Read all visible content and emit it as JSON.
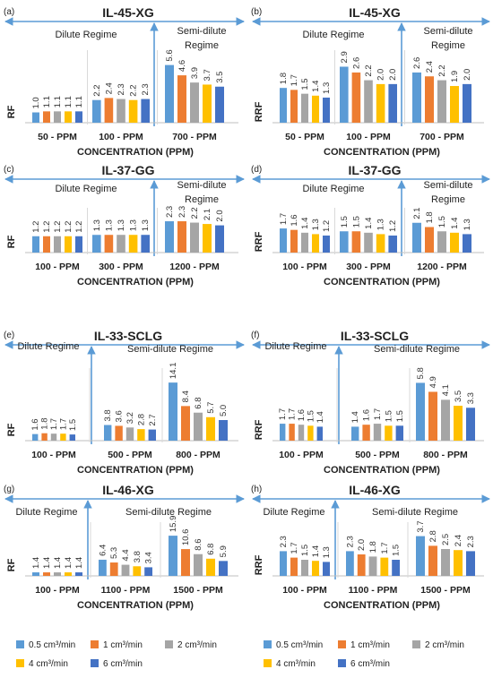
{
  "colors": [
    "#5b9bd5",
    "#ed7d31",
    "#a5a5a5",
    "#ffc000",
    "#4472c4"
  ],
  "arrow_color": "#5b9bd5",
  "legend": [
    "0.5 cm³/min",
    "1 cm³/min",
    "2 cm³/min",
    "4 cm³/min",
    "6 cm³/min"
  ],
  "chart_data": [
    {
      "type": "bar",
      "panel": "(a)",
      "title": "IL-45-XG",
      "ylabel": "RF",
      "xlabel": "CONCENTRATION (PPM)",
      "regime_left": "Dilute Regime",
      "regime_right": "Semi-dilute\nRegime",
      "categories": [
        "50 - PPM",
        "100 - PPM",
        "700 - PPM"
      ],
      "values": [
        [
          1.0,
          1.1,
          1.1,
          1.1,
          1.1
        ],
        [
          2.2,
          2.4,
          2.3,
          2.2,
          2.3
        ],
        [
          5.6,
          4.6,
          3.9,
          3.7,
          3.5
        ]
      ],
      "labels": [
        [
          "1.0",
          "1.1",
          "1.1",
          "1.1",
          "1.1"
        ],
        [
          "2.2",
          "2.4",
          "2.3",
          "2.2",
          "2.3"
        ],
        [
          "5.6",
          "4.6",
          "3.9",
          "3.7",
          "3.5"
        ]
      ],
      "ylim": [
        0,
        6
      ]
    },
    {
      "type": "bar",
      "panel": "(b)",
      "title": "IL-45-XG",
      "ylabel": "RRF",
      "xlabel": "CONCENTRATION (PPM)",
      "regime_left": "Dilute Regime",
      "regime_right": "Semi-dilute\nRegime",
      "categories": [
        "50 - PPM",
        "100 - PPM",
        "700 - PPM"
      ],
      "values": [
        [
          1.8,
          1.7,
          1.5,
          1.4,
          1.3
        ],
        [
          2.9,
          2.6,
          2.2,
          2.0,
          2.0
        ],
        [
          2.6,
          2.4,
          2.2,
          1.9,
          2.0
        ]
      ],
      "labels": [
        [
          "1.8",
          "1.7",
          "1.5",
          "1.4",
          "1.3"
        ],
        [
          "2.9",
          "2.6",
          "2.2",
          "2.0",
          "2.0"
        ],
        [
          "2.6",
          "2.4",
          "2.2",
          "1.9",
          "2.0"
        ]
      ],
      "ylim": [
        0,
        3.2
      ]
    },
    {
      "type": "bar",
      "panel": "(c)",
      "title": "IL-37-GG",
      "ylabel": "RF",
      "xlabel": "CONCENTRATION (PPM)",
      "regime_left": "Dilute Regime",
      "regime_right": "Semi-dilute\nRegime",
      "categories": [
        "100 - PPM",
        "300 - PPM",
        "1200 - PPM"
      ],
      "values": [
        [
          1.2,
          1.2,
          1.2,
          1.2,
          1.2
        ],
        [
          1.3,
          1.3,
          1.3,
          1.3,
          1.3
        ],
        [
          2.3,
          2.3,
          2.2,
          2.1,
          2.0
        ]
      ],
      "labels": [
        [
          "1.2",
          "1.2",
          "1.2",
          "1.2",
          "1.2"
        ],
        [
          "1.3",
          "1.3",
          "1.3",
          "1.3",
          "1.3"
        ],
        [
          "2.3",
          "2.3",
          "2.2",
          "2.1",
          "2.0"
        ]
      ],
      "ylim": [
        0,
        2.5
      ]
    },
    {
      "type": "bar",
      "panel": "(d)",
      "title": "IL-37-GG",
      "ylabel": "RRF",
      "xlabel": "CONCENTRATION (PPM)",
      "regime_left": "Dilute Regime",
      "regime_right": "Semi-dilute\nRegime",
      "categories": [
        "100 - PPM",
        "300 - PPM",
        "1200 - PPM"
      ],
      "values": [
        [
          1.7,
          1.6,
          1.4,
          1.3,
          1.2
        ],
        [
          1.5,
          1.5,
          1.4,
          1.3,
          1.2
        ],
        [
          2.1,
          1.8,
          1.5,
          1.4,
          1.3
        ]
      ],
      "labels": [
        [
          "1.7",
          "1.6",
          "1.4",
          "1.3",
          "1.2"
        ],
        [
          "1.5",
          "1.5",
          "1.4",
          "1.3",
          "1.2"
        ],
        [
          "2.1",
          "1.8",
          "1.5",
          "1.4",
          "1.3"
        ]
      ],
      "ylim": [
        0,
        2.4
      ]
    },
    {
      "type": "bar",
      "panel": "(e)",
      "title": "IL-33-SCLG",
      "ylabel": "RF",
      "xlabel": "CONCENTRATION (PPM)",
      "regime_left": "Dilute Regime",
      "regime_right": "Semi-dilute Regime",
      "categories": [
        "100 - PPM",
        "500 - PPM",
        "800 - PPM"
      ],
      "values": [
        [
          1.6,
          1.8,
          1.7,
          1.7,
          1.5
        ],
        [
          3.8,
          3.6,
          3.2,
          2.8,
          2.7
        ],
        [
          14.1,
          8.4,
          6.8,
          5.7,
          5.0
        ]
      ],
      "labels": [
        [
          "1.6",
          "1.8",
          "1.7",
          "1.7",
          "1.5"
        ],
        [
          "3.8",
          "3.6",
          "3.2",
          "2.8",
          "2.7"
        ],
        [
          "14.1",
          "8.4",
          "6.8",
          "5.7",
          "5.0"
        ]
      ],
      "ylim": [
        0,
        15
      ]
    },
    {
      "type": "bar",
      "panel": "(f)",
      "title": "IL-33-SCLG",
      "ylabel": "RRF",
      "xlabel": "CONCENTRATION (PPM)",
      "regime_left": "Dilute Regime",
      "regime_right": "Semi-dilute Regime",
      "categories": [
        "100 - PPM",
        "500 - PPM",
        "800 - PPM"
      ],
      "values": [
        [
          1.7,
          1.7,
          1.6,
          1.5,
          1.4
        ],
        [
          1.4,
          1.6,
          1.7,
          1.5,
          1.5
        ],
        [
          5.8,
          4.9,
          4.1,
          3.5,
          3.3
        ]
      ],
      "labels": [
        [
          "1.7",
          "1.7",
          "1.6",
          "1.5",
          "1.4"
        ],
        [
          "1.4",
          "1.6",
          "1.7",
          "1.5",
          "1.5"
        ],
        [
          "5.8",
          "4.9",
          "4.1",
          "3.5",
          "3.3"
        ]
      ],
      "ylim": [
        0,
        6.2
      ]
    },
    {
      "type": "bar",
      "panel": "(g)",
      "title": "IL-46-XG",
      "ylabel": "RF",
      "xlabel": "CONCENTRATION (PPM)",
      "regime_left": "Dilute Regime",
      "regime_right": "Semi-dilute Regime",
      "categories": [
        "100 - PPM",
        "1100 - PPM",
        "1500 - PPM"
      ],
      "values": [
        [
          1.4,
          1.4,
          1.4,
          1.4,
          1.4
        ],
        [
          6.4,
          5.3,
          4.4,
          3.8,
          3.4
        ],
        [
          15.9,
          10.6,
          8.6,
          6.8,
          5.9
        ]
      ],
      "labels": [
        [
          "1.4",
          "1.4",
          "1.4",
          "1.4",
          "1.4"
        ],
        [
          "6.4",
          "5.3",
          "4.4",
          "3.8",
          "3.4"
        ],
        [
          "15.9",
          "10.6",
          "8.6",
          "6.8",
          "5.9"
        ]
      ],
      "ylim": [
        0,
        17
      ]
    },
    {
      "type": "bar",
      "panel": "(h)",
      "title": "IL-46-XG",
      "ylabel": "RRF",
      "xlabel": "CONCENTRATION (PPM)",
      "regime_left": "Dilute Regime",
      "regime_right": "Semi-dilute Regime",
      "categories": [
        "100 - PPM",
        "1100 - PPM",
        "1500 - PPM"
      ],
      "values": [
        [
          2.3,
          1.7,
          1.5,
          1.4,
          1.3
        ],
        [
          2.3,
          2.0,
          1.8,
          1.7,
          1.5
        ],
        [
          3.7,
          2.8,
          2.5,
          2.4,
          2.3
        ]
      ],
      "labels": [
        [
          "2.3",
          "1.7",
          "1.5",
          "1.4",
          "1.3"
        ],
        [
          "2.3",
          "2.0",
          "1.8",
          "1.7",
          "1.5"
        ],
        [
          "3.7",
          "2.8",
          "2.5",
          "2.4",
          "2.3"
        ]
      ],
      "ylim": [
        0,
        4.0
      ]
    }
  ]
}
